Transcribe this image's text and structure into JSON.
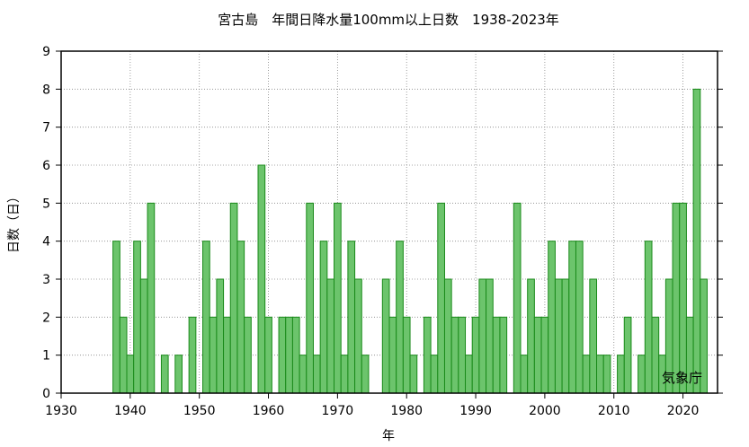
{
  "chart_data": {
    "type": "bar",
    "title": "宮古島　年間日降水量100mm以上日数　1938-2023年",
    "xlabel": "年",
    "ylabel": "日数（日）",
    "credit": "気象庁",
    "xlim": [
      1930,
      2025
    ],
    "ylim": [
      0,
      9
    ],
    "xticks": [
      1930,
      1940,
      1950,
      1960,
      1970,
      1980,
      1990,
      2000,
      2010,
      2020
    ],
    "yticks": [
      0,
      1,
      2,
      3,
      4,
      5,
      6,
      7,
      8,
      9
    ],
    "grid": true,
    "bar_color": "#6cc46c",
    "bar_edge_color": "#1a8a1a",
    "years": [
      1938,
      1939,
      1940,
      1941,
      1942,
      1943,
      1944,
      1945,
      1946,
      1947,
      1948,
      1949,
      1950,
      1951,
      1952,
      1953,
      1954,
      1955,
      1956,
      1957,
      1958,
      1959,
      1960,
      1961,
      1962,
      1963,
      1964,
      1965,
      1966,
      1967,
      1968,
      1969,
      1970,
      1971,
      1972,
      1973,
      1974,
      1975,
      1976,
      1977,
      1978,
      1979,
      1980,
      1981,
      1982,
      1983,
      1984,
      1985,
      1986,
      1987,
      1988,
      1989,
      1990,
      1991,
      1992,
      1993,
      1994,
      1995,
      1996,
      1997,
      1998,
      1999,
      2000,
      2001,
      2002,
      2003,
      2004,
      2005,
      2006,
      2007,
      2008,
      2009,
      2010,
      2011,
      2012,
      2013,
      2014,
      2015,
      2016,
      2017,
      2018,
      2019,
      2020,
      2021,
      2022,
      2023
    ],
    "values": [
      4,
      2,
      1,
      4,
      3,
      5,
      0,
      1,
      0,
      1,
      0,
      2,
      0,
      4,
      2,
      3,
      2,
      5,
      4,
      2,
      0,
      6,
      2,
      0,
      2,
      2,
      2,
      1,
      5,
      1,
      4,
      3,
      5,
      1,
      4,
      3,
      1,
      0,
      0,
      3,
      2,
      4,
      2,
      1,
      0,
      2,
      1,
      5,
      3,
      2,
      2,
      1,
      2,
      3,
      3,
      2,
      2,
      0,
      5,
      1,
      3,
      2,
      2,
      4,
      3,
      3,
      4,
      4,
      1,
      3,
      1,
      1,
      0,
      1,
      2,
      0,
      1,
      4,
      2,
      1,
      3,
      5,
      5,
      2,
      8,
      3
    ]
  }
}
